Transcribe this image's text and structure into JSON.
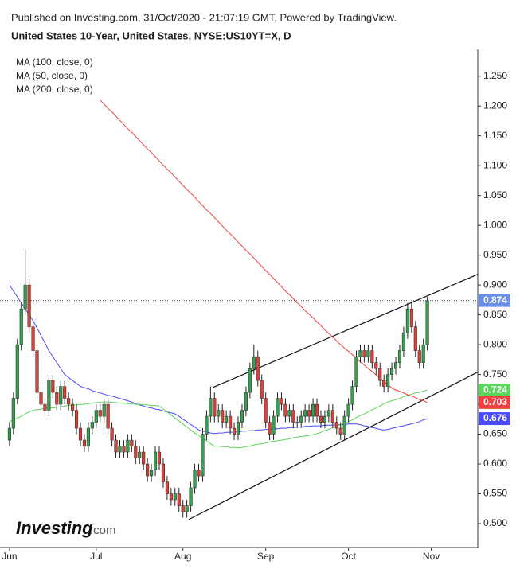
{
  "header": {
    "published": "Published on Investing.com, 31/Oct/2020 - 21:07:19 GMT, Powered by TradingView.",
    "symbol": "United States 10-Year, United States, NYSE:US10YT=X, D"
  },
  "logo": {
    "name": "Investing",
    "suffix": ".com"
  },
  "chart_data": {
    "type": "candlestick",
    "xlim": [
      -2.4,
      118.8
    ],
    "xticks": [
      {
        "value": 0,
        "label": "Jun"
      },
      {
        "value": 22,
        "label": "Jul"
      },
      {
        "value": 44,
        "label": "Aug"
      },
      {
        "value": 65,
        "label": "Sep"
      },
      {
        "value": 86,
        "label": "Oct"
      },
      {
        "value": 107,
        "label": "Nov"
      }
    ],
    "ylim": [
      0.46,
      1.295
    ],
    "yticks": [
      {
        "value": 0.5,
        "label": "0.500"
      },
      {
        "value": 0.55,
        "label": "0.550"
      },
      {
        "value": 0.6,
        "label": "0.600"
      },
      {
        "value": 0.65,
        "label": "0.650"
      },
      {
        "value": 0.7,
        "label": "0.700"
      },
      {
        "value": 0.75,
        "label": "0.750"
      },
      {
        "value": 0.8,
        "label": "0.800"
      },
      {
        "value": 0.85,
        "label": "0.850"
      },
      {
        "value": 0.9,
        "label": "0.900"
      },
      {
        "value": 0.95,
        "label": "0.950"
      },
      {
        "value": 1.0,
        "label": "1.000"
      },
      {
        "value": 1.05,
        "label": "1.050"
      },
      {
        "value": 1.1,
        "label": "1.100"
      },
      {
        "value": 1.15,
        "label": "1.150"
      },
      {
        "value": 1.2,
        "label": "1.200"
      },
      {
        "value": 1.25,
        "label": "1.250"
      }
    ],
    "up_color": "#3a9e4f",
    "down_color": "#d9423b",
    "last_color": "#6b8ee8",
    "open": [
      0.64,
      0.66,
      0.71,
      0.8,
      0.86,
      0.9,
      0.83,
      0.79,
      0.72,
      0.7,
      0.69,
      0.74,
      0.72,
      0.7,
      0.73,
      0.71,
      0.7,
      0.69,
      0.66,
      0.64,
      0.63,
      0.66,
      0.67,
      0.69,
      0.68,
      0.7,
      0.66,
      0.64,
      0.62,
      0.63,
      0.62,
      0.64,
      0.63,
      0.61,
      0.62,
      0.6,
      0.58,
      0.59,
      0.62,
      0.6,
      0.57,
      0.55,
      0.54,
      0.55,
      0.53,
      0.52,
      0.53,
      0.56,
      0.59,
      0.58,
      0.65,
      0.68,
      0.71,
      0.68,
      0.69,
      0.67,
      0.68,
      0.66,
      0.65,
      0.67,
      0.69,
      0.72,
      0.76,
      0.78,
      0.74,
      0.71,
      0.67,
      0.65,
      0.68,
      0.71,
      0.7,
      0.68,
      0.69,
      0.67,
      0.67,
      0.68,
      0.69,
      0.68,
      0.7,
      0.68,
      0.67,
      0.68,
      0.69,
      0.67,
      0.66,
      0.65,
      0.68,
      0.7,
      0.73,
      0.78,
      0.79,
      0.78,
      0.79,
      0.77,
      0.76,
      0.74,
      0.73,
      0.75,
      0.76,
      0.77,
      0.79,
      0.82,
      0.86,
      0.83,
      0.79,
      0.77,
      0.8
    ],
    "high": [
      0.67,
      0.72,
      0.81,
      0.87,
      0.96,
      0.91,
      0.84,
      0.8,
      0.73,
      0.71,
      0.75,
      0.75,
      0.73,
      0.74,
      0.74,
      0.72,
      0.71,
      0.7,
      0.67,
      0.65,
      0.67,
      0.68,
      0.7,
      0.7,
      0.71,
      0.71,
      0.67,
      0.65,
      0.64,
      0.64,
      0.65,
      0.65,
      0.64,
      0.63,
      0.63,
      0.61,
      0.6,
      0.63,
      0.63,
      0.61,
      0.58,
      0.56,
      0.56,
      0.56,
      0.54,
      0.54,
      0.57,
      0.6,
      0.6,
      0.66,
      0.69,
      0.73,
      0.72,
      0.7,
      0.7,
      0.69,
      0.69,
      0.67,
      0.68,
      0.7,
      0.73,
      0.77,
      0.8,
      0.79,
      0.75,
      0.72,
      0.68,
      0.69,
      0.72,
      0.72,
      0.71,
      0.7,
      0.7,
      0.68,
      0.69,
      0.7,
      0.7,
      0.71,
      0.71,
      0.69,
      0.69,
      0.7,
      0.7,
      0.68,
      0.67,
      0.69,
      0.71,
      0.74,
      0.79,
      0.8,
      0.8,
      0.8,
      0.8,
      0.78,
      0.77,
      0.75,
      0.76,
      0.77,
      0.78,
      0.8,
      0.83,
      0.87,
      0.87,
      0.84,
      0.8,
      0.81,
      0.88
    ],
    "low": [
      0.63,
      0.65,
      0.7,
      0.79,
      0.85,
      0.82,
      0.78,
      0.71,
      0.69,
      0.68,
      0.68,
      0.71,
      0.69,
      0.69,
      0.7,
      0.69,
      0.68,
      0.65,
      0.63,
      0.62,
      0.62,
      0.65,
      0.66,
      0.67,
      0.67,
      0.65,
      0.63,
      0.61,
      0.61,
      0.61,
      0.61,
      0.62,
      0.6,
      0.6,
      0.59,
      0.57,
      0.57,
      0.58,
      0.59,
      0.56,
      0.54,
      0.53,
      0.53,
      0.52,
      0.51,
      0.51,
      0.52,
      0.55,
      0.57,
      0.57,
      0.64,
      0.67,
      0.67,
      0.67,
      0.66,
      0.66,
      0.65,
      0.64,
      0.64,
      0.66,
      0.68,
      0.71,
      0.75,
      0.73,
      0.7,
      0.66,
      0.64,
      0.64,
      0.67,
      0.69,
      0.67,
      0.67,
      0.66,
      0.66,
      0.66,
      0.67,
      0.67,
      0.67,
      0.67,
      0.66,
      0.66,
      0.67,
      0.66,
      0.65,
      0.64,
      0.64,
      0.67,
      0.69,
      0.72,
      0.77,
      0.77,
      0.77,
      0.76,
      0.75,
      0.73,
      0.72,
      0.72,
      0.74,
      0.75,
      0.76,
      0.78,
      0.81,
      0.82,
      0.78,
      0.76,
      0.76,
      0.79
    ],
    "close": [
      0.66,
      0.71,
      0.8,
      0.86,
      0.9,
      0.83,
      0.79,
      0.72,
      0.7,
      0.69,
      0.74,
      0.72,
      0.7,
      0.73,
      0.71,
      0.7,
      0.69,
      0.66,
      0.64,
      0.63,
      0.66,
      0.67,
      0.69,
      0.68,
      0.7,
      0.66,
      0.64,
      0.62,
      0.63,
      0.62,
      0.64,
      0.63,
      0.61,
      0.62,
      0.6,
      0.58,
      0.59,
      0.62,
      0.6,
      0.57,
      0.55,
      0.54,
      0.55,
      0.53,
      0.52,
      0.53,
      0.56,
      0.59,
      0.58,
      0.65,
      0.68,
      0.71,
      0.68,
      0.69,
      0.67,
      0.68,
      0.66,
      0.65,
      0.67,
      0.69,
      0.72,
      0.76,
      0.78,
      0.74,
      0.71,
      0.67,
      0.65,
      0.68,
      0.71,
      0.7,
      0.68,
      0.69,
      0.67,
      0.67,
      0.68,
      0.69,
      0.68,
      0.7,
      0.68,
      0.67,
      0.68,
      0.69,
      0.67,
      0.66,
      0.65,
      0.68,
      0.7,
      0.73,
      0.78,
      0.79,
      0.78,
      0.79,
      0.77,
      0.76,
      0.74,
      0.73,
      0.75,
      0.76,
      0.77,
      0.79,
      0.82,
      0.86,
      0.83,
      0.79,
      0.77,
      0.8,
      0.874
    ],
    "series": [
      {
        "name": "MA (100, close, 0)",
        "color": "#4a4aff",
        "values": [
          0.9,
          0.89,
          0.88,
          0.87,
          0.86,
          0.85,
          0.84,
          0.828,
          0.815,
          0.803,
          0.79,
          0.78,
          0.77,
          0.76,
          0.75,
          0.745,
          0.74,
          0.735,
          0.73,
          0.728,
          0.726,
          0.723,
          0.721,
          0.719,
          0.717,
          0.715,
          0.714,
          0.712,
          0.71,
          0.708,
          0.706,
          0.704,
          0.701,
          0.699,
          0.697,
          0.695,
          0.694,
          0.692,
          0.691,
          0.689,
          0.687,
          0.686,
          0.684,
          0.68,
          0.675,
          0.671,
          0.666,
          0.662,
          0.657,
          0.655,
          0.654,
          0.652,
          0.651,
          0.652,
          0.652,
          0.653,
          0.653,
          0.654,
          0.654,
          0.655,
          0.655,
          0.656,
          0.656,
          0.657,
          0.657,
          0.658,
          0.658,
          0.659,
          0.659,
          0.66,
          0.66,
          0.661,
          0.661,
          0.662,
          0.662,
          0.663,
          0.663,
          0.664,
          0.664,
          0.664,
          0.665,
          0.665,
          0.665,
          0.666,
          0.666,
          0.666,
          0.667,
          0.667,
          0.667,
          0.666,
          0.664,
          0.663,
          0.661,
          0.66,
          0.658,
          0.657,
          0.658,
          0.66,
          0.661,
          0.663,
          0.664,
          0.666,
          0.667,
          0.669,
          0.671,
          0.674,
          0.676
        ]
      },
      {
        "name": "MA (50, close, 0)",
        "color": "#5ad65a",
        "values": [
          0.671,
          0.674,
          0.677,
          0.68,
          0.684,
          0.687,
          0.69,
          0.691,
          0.692,
          0.693,
          0.694,
          0.694,
          0.695,
          0.696,
          0.697,
          0.698,
          0.698,
          0.699,
          0.7,
          0.7,
          0.701,
          0.702,
          0.703,
          0.703,
          0.704,
          0.704,
          0.703,
          0.703,
          0.702,
          0.702,
          0.701,
          0.701,
          0.7,
          0.7,
          0.699,
          0.699,
          0.698,
          0.698,
          0.697,
          0.692,
          0.687,
          0.682,
          0.677,
          0.672,
          0.667,
          0.662,
          0.657,
          0.652,
          0.648,
          0.643,
          0.639,
          0.634,
          0.63,
          0.63,
          0.629,
          0.629,
          0.628,
          0.628,
          0.627,
          0.628,
          0.629,
          0.63,
          0.632,
          0.633,
          0.634,
          0.635,
          0.637,
          0.638,
          0.639,
          0.64,
          0.641,
          0.642,
          0.644,
          0.645,
          0.646,
          0.647,
          0.648,
          0.649,
          0.651,
          0.653,
          0.656,
          0.658,
          0.661,
          0.663,
          0.666,
          0.668,
          0.671,
          0.674,
          0.678,
          0.681,
          0.684,
          0.687,
          0.691,
          0.694,
          0.697,
          0.701,
          0.704,
          0.706,
          0.708,
          0.71,
          0.713,
          0.715,
          0.717,
          0.719,
          0.72,
          0.722,
          0.724
        ]
      },
      {
        "name": "MA (200, close, 0)",
        "color": "#f04040",
        "values": [
          null,
          null,
          null,
          null,
          null,
          null,
          null,
          null,
          null,
          null,
          null,
          null,
          null,
          null,
          null,
          null,
          null,
          null,
          null,
          null,
          null,
          null,
          null,
          1.21,
          1.203,
          1.196,
          1.19,
          1.183,
          1.176,
          1.169,
          1.162,
          1.156,
          1.149,
          1.142,
          1.135,
          1.128,
          1.122,
          1.115,
          1.108,
          1.101,
          1.094,
          1.088,
          1.081,
          1.074,
          1.067,
          1.06,
          1.054,
          1.047,
          1.04,
          1.033,
          1.026,
          1.02,
          1.013,
          1.006,
          0.999,
          0.992,
          0.986,
          0.979,
          0.972,
          0.965,
          0.958,
          0.952,
          0.945,
          0.938,
          0.931,
          0.924,
          0.918,
          0.911,
          0.904,
          0.897,
          0.89,
          0.884,
          0.877,
          0.87,
          0.864,
          0.857,
          0.851,
          0.845,
          0.838,
          0.832,
          0.825,
          0.819,
          0.813,
          0.806,
          0.8,
          0.794,
          0.789,
          0.783,
          0.777,
          0.771,
          0.766,
          0.76,
          0.755,
          0.749,
          0.744,
          0.738,
          0.733,
          0.727,
          0.724,
          0.722,
          0.719,
          0.716,
          0.714,
          0.711,
          0.708,
          0.706,
          0.703
        ]
      }
    ],
    "trendlines": [
      {
        "x": [
          51.5,
          118.8
        ],
        "y": [
          0.728,
          0.918
        ]
      },
      {
        "x": [
          45.5,
          118.8
        ],
        "y": [
          0.507,
          0.754
        ]
      }
    ]
  }
}
